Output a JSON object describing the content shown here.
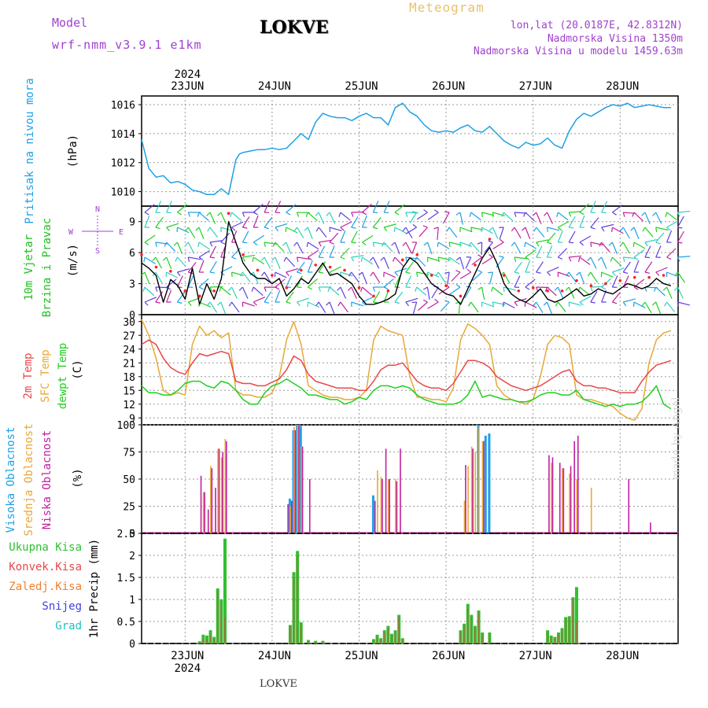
{
  "header": {
    "model_label": "Model",
    "model_run": "wrf-nmm_v3.9.1  e1km",
    "title": "LOKVE",
    "meteogram_label": "Meteogram",
    "lonlat": "lon,lat (20.0187E, 42.8312N)",
    "elevation": "Nadmorska Visina 1350m",
    "model_elevation": "Nadmorska Visina u modelu 1459.63m"
  },
  "footer": {
    "station_name": "LOKVE",
    "made_by": "made by Angel"
  },
  "time_axis": {
    "year": "2024",
    "days": [
      "23JUN",
      "24JUN",
      "25JUN",
      "26JUN",
      "27JUN",
      "28JUN"
    ]
  },
  "colors": {
    "pressure": "#1ea0e6",
    "wind_speed": "#000000",
    "wind_gust_dots": "#ff2020",
    "temp_2m": "#e84848",
    "temp_sfc": "#e8a838",
    "temp_dewpt": "#20d020",
    "cloud_high": "#1ea0e6",
    "cloud_mid": "#e8a838",
    "cloud_low": "#c020a0",
    "precip_total": "#30c030",
    "precip_conv": "#e84848",
    "precip_frz": "#f08030",
    "precip_snow": "#4040e0",
    "precip_hail": "#20c0c0",
    "purple_text": "#a040d0"
  },
  "panels": {
    "pressure": {
      "labels": [
        "Pritisak na nivou mora"
      ],
      "unit": "(hPa)",
      "ticks": [
        "1010",
        "1012",
        "1014",
        "1016"
      ]
    },
    "wind": {
      "labels": [
        "10m Vjetar",
        "Brzina i Pravac"
      ],
      "unit": "(m/s)",
      "ticks": [
        "0",
        "3",
        "6",
        "9"
      ],
      "compass": [
        "N",
        "W",
        "E",
        "S"
      ]
    },
    "temp": {
      "labels": [
        "2m Temp",
        "SFC Temp",
        "dewpt Temp"
      ],
      "unit": "(C)",
      "ticks": [
        "9",
        "12",
        "15",
        "18",
        "21",
        "24",
        "27",
        "30"
      ]
    },
    "cloud": {
      "labels": [
        "Visoka Oblacnost",
        "Srednja Oblacnost",
        "Niska Oblacnost"
      ],
      "unit": "(%)",
      "ticks": [
        "0",
        "25",
        "50",
        "75",
        "100"
      ]
    },
    "precip": {
      "legend": [
        "Ukupna Kisa",
        "Konvek.Kisa",
        "Zaledj.Kisa",
        "Snijeg",
        "Grad"
      ],
      "unit": "1hr Precip (mm)",
      "ticks": [
        "0",
        "0.5",
        "1",
        "1.5",
        "2",
        "2.5"
      ]
    }
  },
  "chart_data": [
    {
      "type": "line",
      "title": "Pritisak na nivou mora",
      "ylabel": "(hPa)",
      "ylim": [
        1009,
        1016.6
      ],
      "x_unit": "hours since 23JUN 00 UTC",
      "series": [
        {
          "name": "Pritisak na nivou mora",
          "x": [
            -12,
            -10,
            -8,
            -6,
            -4,
            -2,
            0,
            2,
            4,
            6,
            8,
            10,
            12,
            14,
            15,
            16,
            18,
            20,
            22,
            24,
            26,
            28,
            30,
            32,
            34,
            36,
            37,
            38,
            40,
            42,
            44,
            46,
            48,
            50,
            52,
            54,
            56,
            58,
            60,
            62,
            64,
            66,
            68,
            70,
            72,
            74,
            76,
            78,
            80,
            82,
            84,
            86,
            88,
            90,
            92,
            94,
            96,
            98,
            100,
            102,
            104,
            106,
            108,
            110,
            112,
            114,
            116,
            118,
            120,
            122,
            124,
            126,
            128,
            130,
            132,
            134
          ],
          "values": [
            1013.6,
            1011.6,
            1011,
            1011.1,
            1010.6,
            1010.7,
            1010.5,
            1010.1,
            1010,
            1009.8,
            1009.8,
            1010.2,
            1009.8,
            1012.2,
            1012.6,
            1012.7,
            1012.8,
            1012.9,
            1012.9,
            1013,
            1012.9,
            1013,
            1013.5,
            1014,
            1013.6,
            1014.8,
            1015.1,
            1015.4,
            1015.2,
            1015.1,
            1015.1,
            1014.9,
            1015.2,
            1015.4,
            1015.1,
            1015.1,
            1014.6,
            1015.8,
            1016.1,
            1015.5,
            1015.2,
            1014.6,
            1014.2,
            1014.1,
            1014.2,
            1014.1,
            1014.4,
            1014.6,
            1014.2,
            1014.1,
            1014.5,
            1014,
            1013.5,
            1013.2,
            1013,
            1013.4,
            1013.2,
            1013.3,
            1013.7,
            1013.2,
            1013,
            1014.2,
            1015,
            1015.4,
            1015.2,
            1015.5,
            1015.8,
            1016,
            1015.9,
            1016.1,
            1015.8,
            1015.9,
            1016,
            1015.9,
            1015.8,
            1015.8
          ]
        }
      ]
    },
    {
      "type": "line",
      "title": "10m Vjetar Brzina i Pravac",
      "ylabel": "(m/s)",
      "ylim": [
        0,
        10.5
      ],
      "x_unit": "hours since 23JUN 00 UTC",
      "series": [
        {
          "name": "10m Vjetar",
          "x": [
            -12,
            -10,
            -8,
            -6,
            -4,
            -2,
            0,
            2,
            4,
            6,
            8,
            10,
            12,
            14,
            16,
            18,
            20,
            22,
            24,
            26,
            28,
            30,
            32,
            34,
            36,
            38,
            40,
            42,
            44,
            46,
            48,
            50,
            52,
            54,
            56,
            58,
            60,
            62,
            64,
            66,
            68,
            70,
            72,
            74,
            76,
            78,
            80,
            82,
            84,
            86,
            88,
            90,
            92,
            94,
            96,
            98,
            100,
            102,
            104,
            106,
            108,
            110,
            112,
            114,
            116,
            118,
            120,
            122,
            124,
            126,
            128,
            130,
            132,
            134
          ],
          "values": [
            5,
            4.5,
            3.8,
            1.2,
            3.4,
            2.8,
            1.5,
            4.5,
            1,
            3,
            1.5,
            3.5,
            9,
            7,
            5,
            4,
            3.5,
            3.5,
            3,
            3.5,
            1.8,
            2.5,
            3.5,
            3,
            4,
            5,
            3.8,
            4,
            3.5,
            3,
            1.8,
            1,
            1,
            1.2,
            1.5,
            2,
            4.5,
            5.5,
            5,
            4,
            3,
            2.5,
            2,
            1.8,
            1,
            2.5,
            4,
            5.5,
            6.5,
            5,
            3,
            2,
            1.5,
            1.2,
            1.8,
            2.5,
            1.5,
            1.2,
            1.5,
            2,
            2.5,
            1.8,
            2,
            2.5,
            2.2,
            2,
            2.5,
            3,
            2.8,
            2.5,
            2.8,
            3.5,
            3,
            2.8
          ]
        }
      ]
    },
    {
      "type": "line",
      "title": "Temperatura",
      "ylabel": "(C)",
      "ylim": [
        7.5,
        31.5
      ],
      "x_unit": "hours since 23JUN 00 UTC",
      "x": [
        -12,
        -10,
        -8,
        -6,
        -4,
        -2,
        0,
        2,
        4,
        6,
        8,
        10,
        12,
        14,
        16,
        18,
        20,
        22,
        24,
        26,
        28,
        30,
        32,
        34,
        36,
        38,
        40,
        42,
        44,
        46,
        48,
        50,
        52,
        54,
        56,
        58,
        60,
        62,
        64,
        66,
        68,
        70,
        72,
        74,
        76,
        78,
        80,
        82,
        84,
        86,
        88,
        90,
        92,
        94,
        96,
        98,
        100,
        102,
        104,
        106,
        108,
        110,
        112,
        114,
        116,
        118,
        120,
        122,
        124,
        126,
        128,
        130,
        132,
        134
      ],
      "series": [
        {
          "name": "2m Temp",
          "values": [
            25,
            26,
            25,
            22,
            20,
            19,
            18.5,
            21,
            23,
            22.5,
            23,
            23.5,
            23,
            17,
            16.5,
            16.5,
            16,
            16,
            16.8,
            17.5,
            19.5,
            22.5,
            21.5,
            18.5,
            17,
            16.5,
            16,
            15.5,
            15.5,
            15.5,
            15,
            15,
            17,
            19.5,
            20.5,
            20.5,
            21,
            19,
            17,
            16,
            15.5,
            15.5,
            15,
            16.5,
            19,
            21.5,
            21.5,
            21,
            20,
            18,
            17,
            16,
            15.5,
            15,
            15.5,
            16,
            17,
            18,
            19,
            19.5,
            17,
            16,
            16,
            15.5,
            15.5,
            15,
            14.5,
            14.5,
            14.5,
            17,
            19,
            20.5,
            21,
            21.5
          ]
        },
        {
          "name": "SFC Temp",
          "values": [
            30.5,
            27,
            22,
            15,
            14,
            14.5,
            14,
            25,
            29,
            27,
            28,
            26.5,
            27.5,
            15,
            14,
            14,
            13.5,
            13.5,
            14.5,
            18,
            26,
            30,
            25,
            16,
            15,
            14,
            13.5,
            13.5,
            13,
            13,
            13.5,
            15,
            26,
            29,
            28,
            27.5,
            27,
            18,
            13.5,
            13.5,
            13,
            13,
            12.5,
            15.5,
            26,
            29.5,
            28.5,
            27,
            25,
            16,
            14,
            13,
            12.5,
            12,
            13,
            18,
            25,
            27,
            26.5,
            25,
            14,
            13,
            13,
            12.5,
            12,
            11.5,
            10,
            9,
            8.5,
            11,
            21,
            26,
            27.5,
            28
          ]
        },
        {
          "name": "dewpt Temp",
          "values": [
            16,
            14.5,
            14.5,
            14,
            14,
            15,
            16.5,
            17,
            17,
            16,
            15.5,
            17,
            16.5,
            15,
            13,
            12,
            12,
            14.5,
            16,
            16.5,
            17.5,
            16.5,
            15.5,
            14,
            14,
            13.5,
            13,
            13,
            12,
            12.5,
            13.5,
            13,
            15,
            16,
            16,
            15.5,
            16,
            15.5,
            14,
            13,
            12.5,
            12,
            12,
            12,
            12.5,
            14,
            17,
            13.5,
            14,
            13.5,
            13,
            13,
            12.5,
            12.5,
            13,
            14,
            14.5,
            14.5,
            14,
            14,
            15,
            13,
            12.5,
            12,
            11.5,
            12,
            11.5,
            12,
            12,
            12.5,
            14,
            16,
            12,
            11
          ]
        }
      ]
    },
    {
      "type": "bar",
      "title": "Oblacnost",
      "ylabel": "(%)",
      "ylim": [
        0,
        100
      ],
      "x_unit": "hours since 23JUN 00 UTC",
      "x": [
        4,
        5,
        6,
        7,
        8,
        9,
        10,
        11,
        12,
        28,
        29,
        30,
        31,
        32,
        33,
        34,
        35,
        36,
        38,
        40,
        52,
        53,
        54,
        55,
        56,
        57,
        58,
        59,
        60,
        76,
        77,
        78,
        79,
        80,
        81,
        82,
        83,
        84,
        100,
        101,
        102,
        103,
        104,
        105,
        106,
        107,
        108,
        110,
        112,
        122,
        128
      ],
      "series": [
        {
          "name": "Visoka Oblacnost",
          "values": [
            0,
            0,
            0,
            0,
            0,
            0,
            0,
            0,
            0,
            0,
            32,
            95,
            100,
            99,
            0,
            0,
            0,
            0,
            0,
            0,
            35,
            0,
            0,
            0,
            0,
            0,
            0,
            0,
            0,
            0,
            0,
            0,
            0,
            0,
            100,
            0,
            90,
            92,
            0,
            0,
            0,
            0,
            0,
            0,
            0,
            0,
            0,
            0,
            0,
            0,
            0
          ]
        },
        {
          "name": "Srednja Oblacnost",
          "values": [
            0,
            38,
            0,
            62,
            0,
            78,
            70,
            87,
            0,
            0,
            25,
            98,
            100,
            80,
            0,
            0,
            0,
            0,
            0,
            0,
            0,
            58,
            52,
            0,
            50,
            0,
            50,
            0,
            0,
            0,
            30,
            62,
            80,
            75,
            98,
            85,
            0,
            0,
            0,
            65,
            0,
            0,
            60,
            0,
            55,
            0,
            50,
            0,
            42,
            0,
            0
          ]
        },
        {
          "name": "Niska Oblacnost",
          "values": [
            53,
            38,
            22,
            60,
            42,
            78,
            75,
            85,
            0,
            27,
            30,
            95,
            100,
            80,
            0,
            50,
            0,
            0,
            0,
            0,
            30,
            0,
            50,
            78,
            50,
            0,
            48,
            78,
            0,
            0,
            63,
            0,
            78,
            0,
            0,
            85,
            0,
            0,
            72,
            70,
            0,
            65,
            60,
            0,
            62,
            85,
            90,
            0,
            0,
            50,
            10
          ]
        }
      ]
    },
    {
      "type": "bar",
      "title": "1hr Precip",
      "ylabel": "1hr Precip (mm)",
      "ylim": [
        0,
        2.5
      ],
      "x_unit": "hours since 23JUN 00 UTC",
      "x": [
        4,
        5,
        6,
        7,
        8,
        9,
        10,
        11,
        28,
        29,
        30,
        31,
        32,
        34,
        36,
        38,
        52,
        53,
        54,
        55,
        56,
        57,
        58,
        59,
        60,
        76,
        77,
        78,
        79,
        80,
        81,
        82,
        83,
        84,
        100,
        101,
        102,
        103,
        104,
        105,
        106,
        107,
        108
      ],
      "series": [
        {
          "name": "Ukupna Kisa",
          "values": [
            0.05,
            0.2,
            0.18,
            0.3,
            0.15,
            1.25,
            1,
            2.38,
            0,
            0.42,
            1.62,
            2.1,
            0.48,
            0.08,
            0.06,
            0.06,
            0.1,
            0.2,
            0.12,
            0.3,
            0.4,
            0.22,
            0.3,
            0.65,
            0.12,
            0.3,
            0.45,
            0.9,
            0.65,
            0.4,
            0.75,
            0.25,
            0,
            0.25,
            0.3,
            0.18,
            0.15,
            0.25,
            0.35,
            0.6,
            0.62,
            1.05,
            1.28
          ]
        },
        {
          "name": "Konvek.Kisa",
          "values": [
            0.03,
            0.1,
            0.1,
            0.2,
            0.1,
            1.2,
            0.9,
            0.6,
            0,
            0.4,
            1.5,
            2,
            0.4,
            0.05,
            0.04,
            0.04,
            0.08,
            0.15,
            0.1,
            0.25,
            0.35,
            0.2,
            0.25,
            0.6,
            0.1,
            0.25,
            0.4,
            0.8,
            0.6,
            0.35,
            0.7,
            0.2,
            0,
            0.2,
            0.25,
            0.15,
            0.12,
            0.2,
            0.3,
            0.55,
            0.6,
            1,
            0.5
          ]
        }
      ]
    }
  ]
}
